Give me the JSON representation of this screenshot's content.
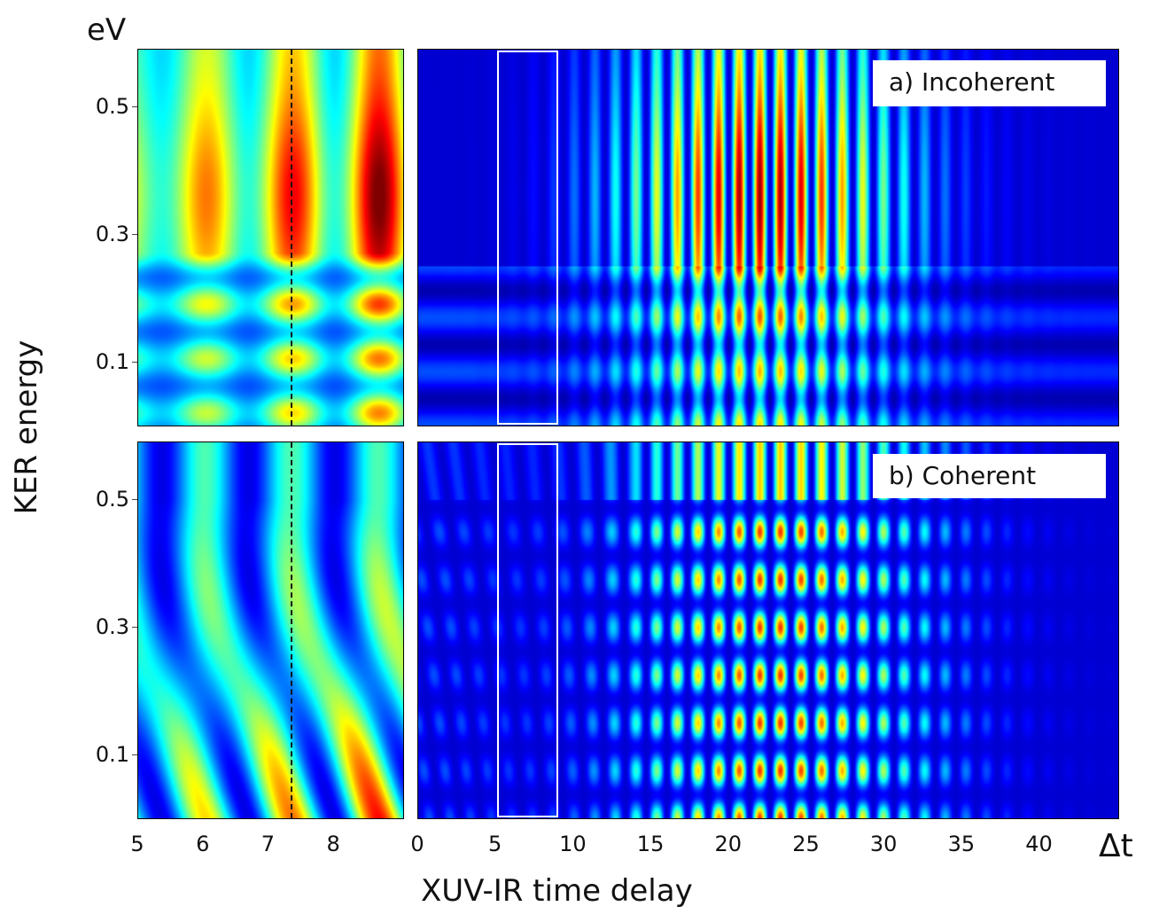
{
  "chart_data": {
    "type": "heatmap",
    "colormap": "jet",
    "ylabel": "KER energy",
    "yunit": "eV",
    "xlabel": "XUV-IR time delay",
    "xunit": "Δt",
    "ylim": [
      0,
      0.59
    ],
    "yticks": [
      "0.5",
      "0.3",
      "0.1"
    ],
    "ytick_values": [
      0.5,
      0.3,
      0.1
    ],
    "zoom_xlim": [
      5,
      9.07
    ],
    "zoom_xticks": [
      "5",
      "6",
      "7",
      "8"
    ],
    "zoom_xtick_values": [
      5,
      6,
      7,
      8
    ],
    "full_xlim": [
      0,
      45.1
    ],
    "full_xticks": [
      "0",
      "5",
      "10",
      "15",
      "20",
      "25",
      "30",
      "35",
      "40"
    ],
    "full_xtick_values": [
      0,
      5,
      10,
      15,
      20,
      25,
      30,
      35,
      40
    ],
    "dashed_line_x": 7.35,
    "highlight_region_x": [
      5,
      9
    ],
    "fringe_period": 1.33,
    "panels": [
      {
        "id": "a",
        "label": "a) Incoherent",
        "mode": "incoherent",
        "peak_delay": 22,
        "peak_energy": 0.36
      },
      {
        "id": "b",
        "label": "b) Coherent",
        "mode": "coherent",
        "peak_delay": 24,
        "peak_energy": 0.3
      }
    ]
  }
}
